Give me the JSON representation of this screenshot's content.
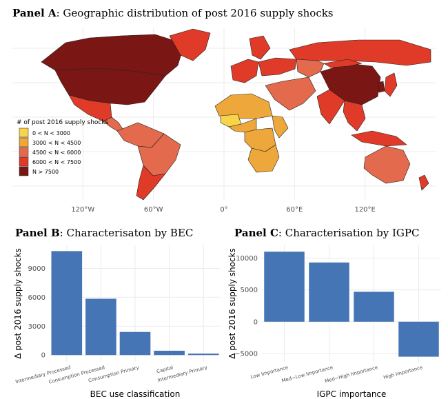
{
  "panels": {
    "a": {
      "tag": "Panel A",
      "title": ": Geographic distribution of post 2016 supply shocks"
    },
    "b": {
      "tag": "Panel B",
      "title": ": Characterisaton by BEC"
    },
    "c": {
      "tag": "Panel C",
      "title": ": Characterisation by IGPC"
    }
  },
  "chart_data": [
    {
      "type": "map",
      "title": "Panel A: Geographic distribution of post 2016 supply shocks",
      "x_ticks": [
        "120°W",
        "60°W",
        "0°",
        "60°E",
        "120°E"
      ],
      "x_tick_values": [
        -120,
        -60,
        0,
        60,
        120
      ],
      "xlim": [
        -180,
        180
      ],
      "legend": {
        "title": "# of post 2016 supply shocks",
        "placement": "left",
        "entries": [
          {
            "label": "0 < N < 3000",
            "color": "#f7d44a"
          },
          {
            "label": "3000 < N < 4500",
            "color": "#eea73a"
          },
          {
            "label": "4500 < N < 6000",
            "color": "#e36a4c"
          },
          {
            "label": "6000 < N < 7500",
            "color": "#e03a28"
          },
          {
            "label": "N > 7500",
            "color": "#7a1714"
          }
        ]
      },
      "regions": [
        {
          "name": "Canada",
          "class": 4
        },
        {
          "name": "United States",
          "class": 4
        },
        {
          "name": "Greenland",
          "class": 3
        },
        {
          "name": "Mexico",
          "class": 3
        },
        {
          "name": "Central America",
          "class": 2
        },
        {
          "name": "South America North",
          "class": 2
        },
        {
          "name": "Brazil",
          "class": 2
        },
        {
          "name": "Southern Cone",
          "class": 3
        },
        {
          "name": "Russia",
          "class": 3
        },
        {
          "name": "Western Europe",
          "class": 3
        },
        {
          "name": "Scandinavia",
          "class": 3
        },
        {
          "name": "Eastern Europe",
          "class": 3
        },
        {
          "name": "China",
          "class": 4
        },
        {
          "name": "Mongolia",
          "class": 3
        },
        {
          "name": "Central Asia",
          "class": 2
        },
        {
          "name": "Middle East",
          "class": 2
        },
        {
          "name": "India",
          "class": 3
        },
        {
          "name": "Southeast Asia",
          "class": 3
        },
        {
          "name": "Japan",
          "class": 3
        },
        {
          "name": "Korea",
          "class": 4
        },
        {
          "name": "Indonesia",
          "class": 3
        },
        {
          "name": "North Africa",
          "class": 1
        },
        {
          "name": "Sahel",
          "class": 0
        },
        {
          "name": "West Africa",
          "class": 1
        },
        {
          "name": "Central Africa",
          "class": 1
        },
        {
          "name": "East Africa",
          "class": 1
        },
        {
          "name": "Southern Africa",
          "class": 1
        },
        {
          "name": "Australia",
          "class": 2
        },
        {
          "name": "New Zealand",
          "class": 3
        }
      ]
    },
    {
      "type": "bar",
      "title": "Panel B: Characterisaton by BEC",
      "categories": [
        "Intermediary Processed",
        "Consumption Processed",
        "Consumption Primary",
        "Capital",
        "Intermediary Primary"
      ],
      "values": [
        10800,
        5850,
        2400,
        450,
        150
      ],
      "xlabel": "BEC use classification",
      "ylabel": "Δ post 2016 supply shocks",
      "yticks": [
        0,
        3000,
        6000,
        9000
      ],
      "ylim": [
        -700,
        11400
      ],
      "color": "#4575b4"
    },
    {
      "type": "bar",
      "title": "Panel C: Characterisation by IGPC",
      "categories": [
        "Low Importance",
        "Med−Low Importance",
        "Med−High Importance",
        "High Importance"
      ],
      "values": [
        11000,
        9300,
        4700,
        -5500
      ],
      "xlabel": "IGPC importance",
      "ylabel": "Δ post 2016 supply shocks",
      "yticks": [
        -5000,
        0,
        5000,
        10000
      ],
      "ylim": [
        -6300,
        12000
      ],
      "color": "#4575b4"
    }
  ]
}
